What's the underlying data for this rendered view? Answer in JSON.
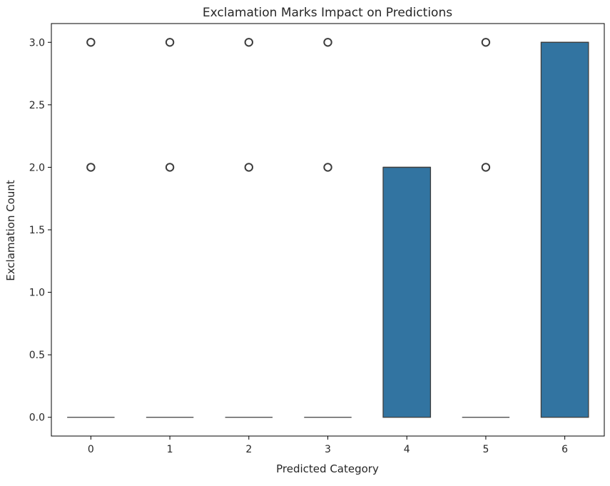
{
  "chart_data": {
    "type": "box",
    "title": "Exclamation Marks Impact on Predictions",
    "xlabel": "Predicted Category",
    "ylabel": "Exclamation Count",
    "categories": [
      "0",
      "1",
      "2",
      "3",
      "4",
      "5",
      "6"
    ],
    "ylim": [
      -0.15,
      3.15
    ],
    "yticks": [
      0.0,
      0.5,
      1.0,
      1.5,
      2.0,
      2.5,
      3.0
    ],
    "ytick_labels": [
      "0.0",
      "0.5",
      "1.0",
      "1.5",
      "2.0",
      "2.5",
      "3.0"
    ],
    "grid": false,
    "box_color": "#3274a1",
    "edge_color": "#3d3d3d",
    "boxes": [
      {
        "category": "0",
        "q1": 0,
        "median": 0,
        "q3": 0,
        "whisker_low": 0,
        "whisker_high": 0,
        "outliers": [
          2,
          3
        ]
      },
      {
        "category": "1",
        "q1": 0,
        "median": 0,
        "q3": 0,
        "whisker_low": 0,
        "whisker_high": 0,
        "outliers": [
          2,
          3
        ]
      },
      {
        "category": "2",
        "q1": 0,
        "median": 0,
        "q3": 0,
        "whisker_low": 0,
        "whisker_high": 0,
        "outliers": [
          2,
          3
        ]
      },
      {
        "category": "3",
        "q1": 0,
        "median": 0,
        "q3": 0,
        "whisker_low": 0,
        "whisker_high": 0,
        "outliers": [
          2,
          3
        ]
      },
      {
        "category": "4",
        "q1": 0,
        "median": 2,
        "q3": 2,
        "whisker_low": 0,
        "whisker_high": 2,
        "outliers": []
      },
      {
        "category": "5",
        "q1": 0,
        "median": 0,
        "q3": 0,
        "whisker_low": 0,
        "whisker_high": 0,
        "outliers": [
          2,
          3
        ]
      },
      {
        "category": "6",
        "q1": 0,
        "median": 3,
        "q3": 3,
        "whisker_low": 0,
        "whisker_high": 3,
        "outliers": []
      }
    ]
  }
}
